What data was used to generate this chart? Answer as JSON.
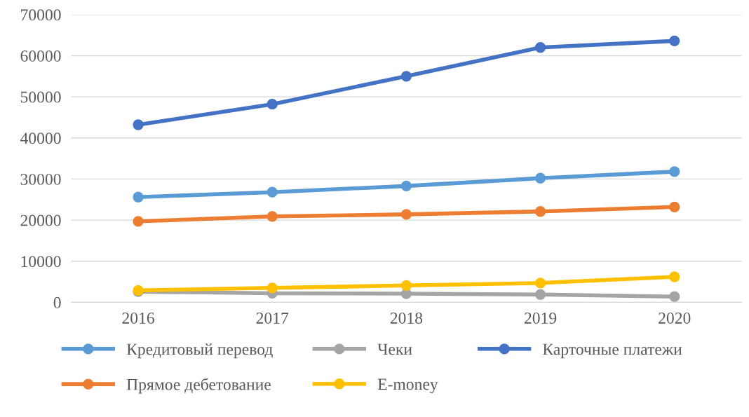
{
  "chart_data": {
    "type": "line",
    "categories": [
      "2016",
      "2017",
      "2018",
      "2019",
      "2020"
    ],
    "series": [
      {
        "name": "Кредитовый перевод",
        "color": "#5b9bd5",
        "values": [
          25600,
          26800,
          28300,
          30200,
          31800
        ]
      },
      {
        "name": "Прямое дебетование",
        "color": "#ed7d31",
        "values": [
          19700,
          20900,
          21400,
          22100,
          23200
        ]
      },
      {
        "name": "Чеки",
        "color": "#a5a5a5",
        "values": [
          2600,
          2200,
          2100,
          1900,
          1400
        ]
      },
      {
        "name": "E-money",
        "color": "#ffc000",
        "values": [
          2900,
          3500,
          4100,
          4700,
          6200
        ]
      },
      {
        "name": "Карточные платежи",
        "color": "#4472c4",
        "values": [
          43200,
          48200,
          55000,
          62000,
          63600
        ]
      }
    ],
    "ylim": [
      0,
      70000
    ],
    "yticks": [
      0,
      10000,
      20000,
      30000,
      40000,
      50000,
      60000,
      70000
    ],
    "grid": "y",
    "legend": "bottom",
    "marker": "circle",
    "line_style": "solid"
  }
}
